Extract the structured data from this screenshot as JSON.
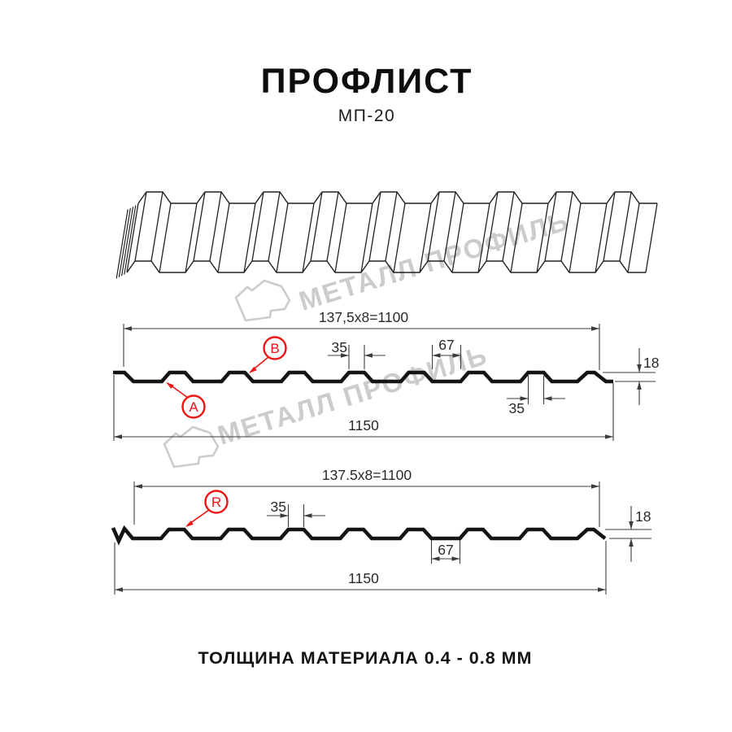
{
  "title": "ПРОФЛИСТ",
  "subtitle": "МП-20",
  "footer": "ТОЛЩИНА МАТЕРИАЛА 0.4 - 0.8 ММ",
  "watermark": {
    "brand": "МЕТАЛЛ ПРОФИЛЬ"
  },
  "colors": {
    "ink": "#141414",
    "dim_line": "#3c3c3c",
    "red": "#ee1414",
    "watermark": "#cccccc"
  },
  "section_top": {
    "pitch_formula": "137,5x8=1100",
    "total_width": "1150",
    "crest_width": "35",
    "valley_width": "67",
    "edge_rib_width": "35",
    "height": "18",
    "marker_a": "A",
    "marker_b": "B"
  },
  "section_bottom": {
    "pitch_formula": "137.5x8=1100",
    "total_width": "1150",
    "crest_width": "35",
    "valley_width": "67",
    "height": "18",
    "marker_r": "R"
  }
}
